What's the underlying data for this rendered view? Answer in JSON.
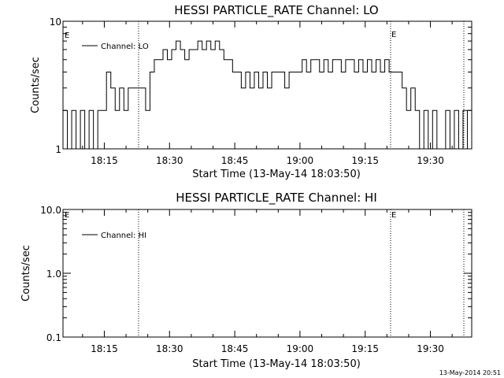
{
  "chart_data": [
    {
      "type": "line",
      "title": "HESSI PARTICLE_RATE Channel: LO",
      "xlabel": "Start Time (13-May-14 18:03:50)",
      "ylabel": "Counts/sec",
      "y_scale": "log",
      "ylim": [
        1,
        10
      ],
      "y_ticks": [
        "1",
        "10"
      ],
      "xlim": [
        "18:05:30",
        "19:39:30"
      ],
      "x_ticks": [
        "18:15",
        "18:30",
        "18:45",
        "19:00",
        "19:15",
        "19:30"
      ],
      "legend": "upper-left",
      "series": [
        {
          "name": "Channel: LO",
          "x": [
            "18:05:30",
            "18:06:30",
            "18:07:30",
            "18:08:30",
            "18:09:30",
            "18:10:30",
            "18:11:30",
            "18:12:30",
            "18:13:30",
            "18:14:30",
            "18:15:30",
            "18:16:30",
            "18:17:30",
            "18:18:30",
            "18:19:30",
            "18:20:30",
            "18:21:30",
            "18:22:30",
            "18:23:30",
            "18:24:30",
            "18:25:30",
            "18:26:30",
            "18:27:30",
            "18:28:30",
            "18:29:30",
            "18:30:30",
            "18:31:30",
            "18:32:30",
            "18:33:30",
            "18:34:30",
            "18:35:30",
            "18:36:30",
            "18:37:30",
            "18:38:30",
            "18:39:30",
            "18:40:30",
            "18:41:30",
            "18:42:30",
            "18:43:30",
            "18:44:30",
            "18:45:30",
            "18:46:30",
            "18:47:30",
            "18:48:30",
            "18:49:30",
            "18:50:30",
            "18:51:30",
            "18:52:30",
            "18:53:30",
            "18:54:30",
            "18:55:30",
            "18:56:30",
            "18:57:30",
            "18:58:30",
            "18:59:30",
            "19:00:30",
            "19:01:30",
            "19:02:30",
            "19:03:30",
            "19:04:30",
            "19:05:30",
            "19:06:30",
            "19:07:30",
            "19:08:30",
            "19:09:30",
            "19:10:30",
            "19:11:30",
            "19:12:30",
            "19:13:30",
            "19:14:30",
            "19:15:30",
            "19:16:30",
            "19:17:30",
            "19:18:30",
            "19:19:30",
            "19:20:30",
            "19:21:30",
            "19:22:30",
            "19:23:30",
            "19:24:30",
            "19:25:30",
            "19:26:30",
            "19:27:30",
            "19:28:30",
            "19:29:30",
            "19:30:30",
            "19:31:30",
            "19:32:30",
            "19:33:30",
            "19:34:30",
            "19:35:30",
            "19:36:30",
            "19:37:30",
            "19:38:30",
            "19:39:30"
          ],
          "values": [
            2,
            1,
            2,
            1,
            2,
            1,
            2,
            1,
            2,
            2,
            4,
            3,
            2,
            3,
            2,
            3,
            3,
            3,
            3,
            2,
            4,
            5,
            5,
            6,
            5,
            6,
            7,
            6,
            5,
            6,
            6,
            7,
            6,
            7,
            6,
            7,
            6,
            5,
            5,
            4,
            4,
            3,
            4,
            3,
            4,
            3,
            4,
            3,
            4,
            4,
            4,
            3,
            4,
            4,
            4,
            5,
            4,
            5,
            5,
            4,
            5,
            4,
            5,
            5,
            4,
            5,
            5,
            4,
            5,
            4,
            5,
            4,
            5,
            4,
            5,
            4,
            4,
            4,
            3,
            2,
            3,
            2,
            1,
            2,
            1,
            2,
            1,
            1,
            2,
            1,
            2,
            1,
            2,
            1,
            2
          ]
        }
      ],
      "annotations": [
        "E",
        "E"
      ]
    },
    {
      "type": "line",
      "title": "HESSI PARTICLE_RATE Channel: HI",
      "xlabel": "Start Time (13-May-14 18:03:50)",
      "ylabel": "Counts/sec",
      "y_scale": "log",
      "ylim": [
        0.1,
        10
      ],
      "y_ticks": [
        "0.1",
        "1.0",
        "10.0"
      ],
      "xlim": [
        "18:05:30",
        "19:39:30"
      ],
      "x_ticks": [
        "18:15",
        "18:30",
        "18:45",
        "19:00",
        "19:15",
        "19:30"
      ],
      "legend": "upper-left",
      "series": [
        {
          "name": "Channel: HI",
          "x": [],
          "values": []
        }
      ],
      "annotations": [
        "E",
        "E"
      ]
    }
  ],
  "timestamp": "13-May-2014 20:51"
}
